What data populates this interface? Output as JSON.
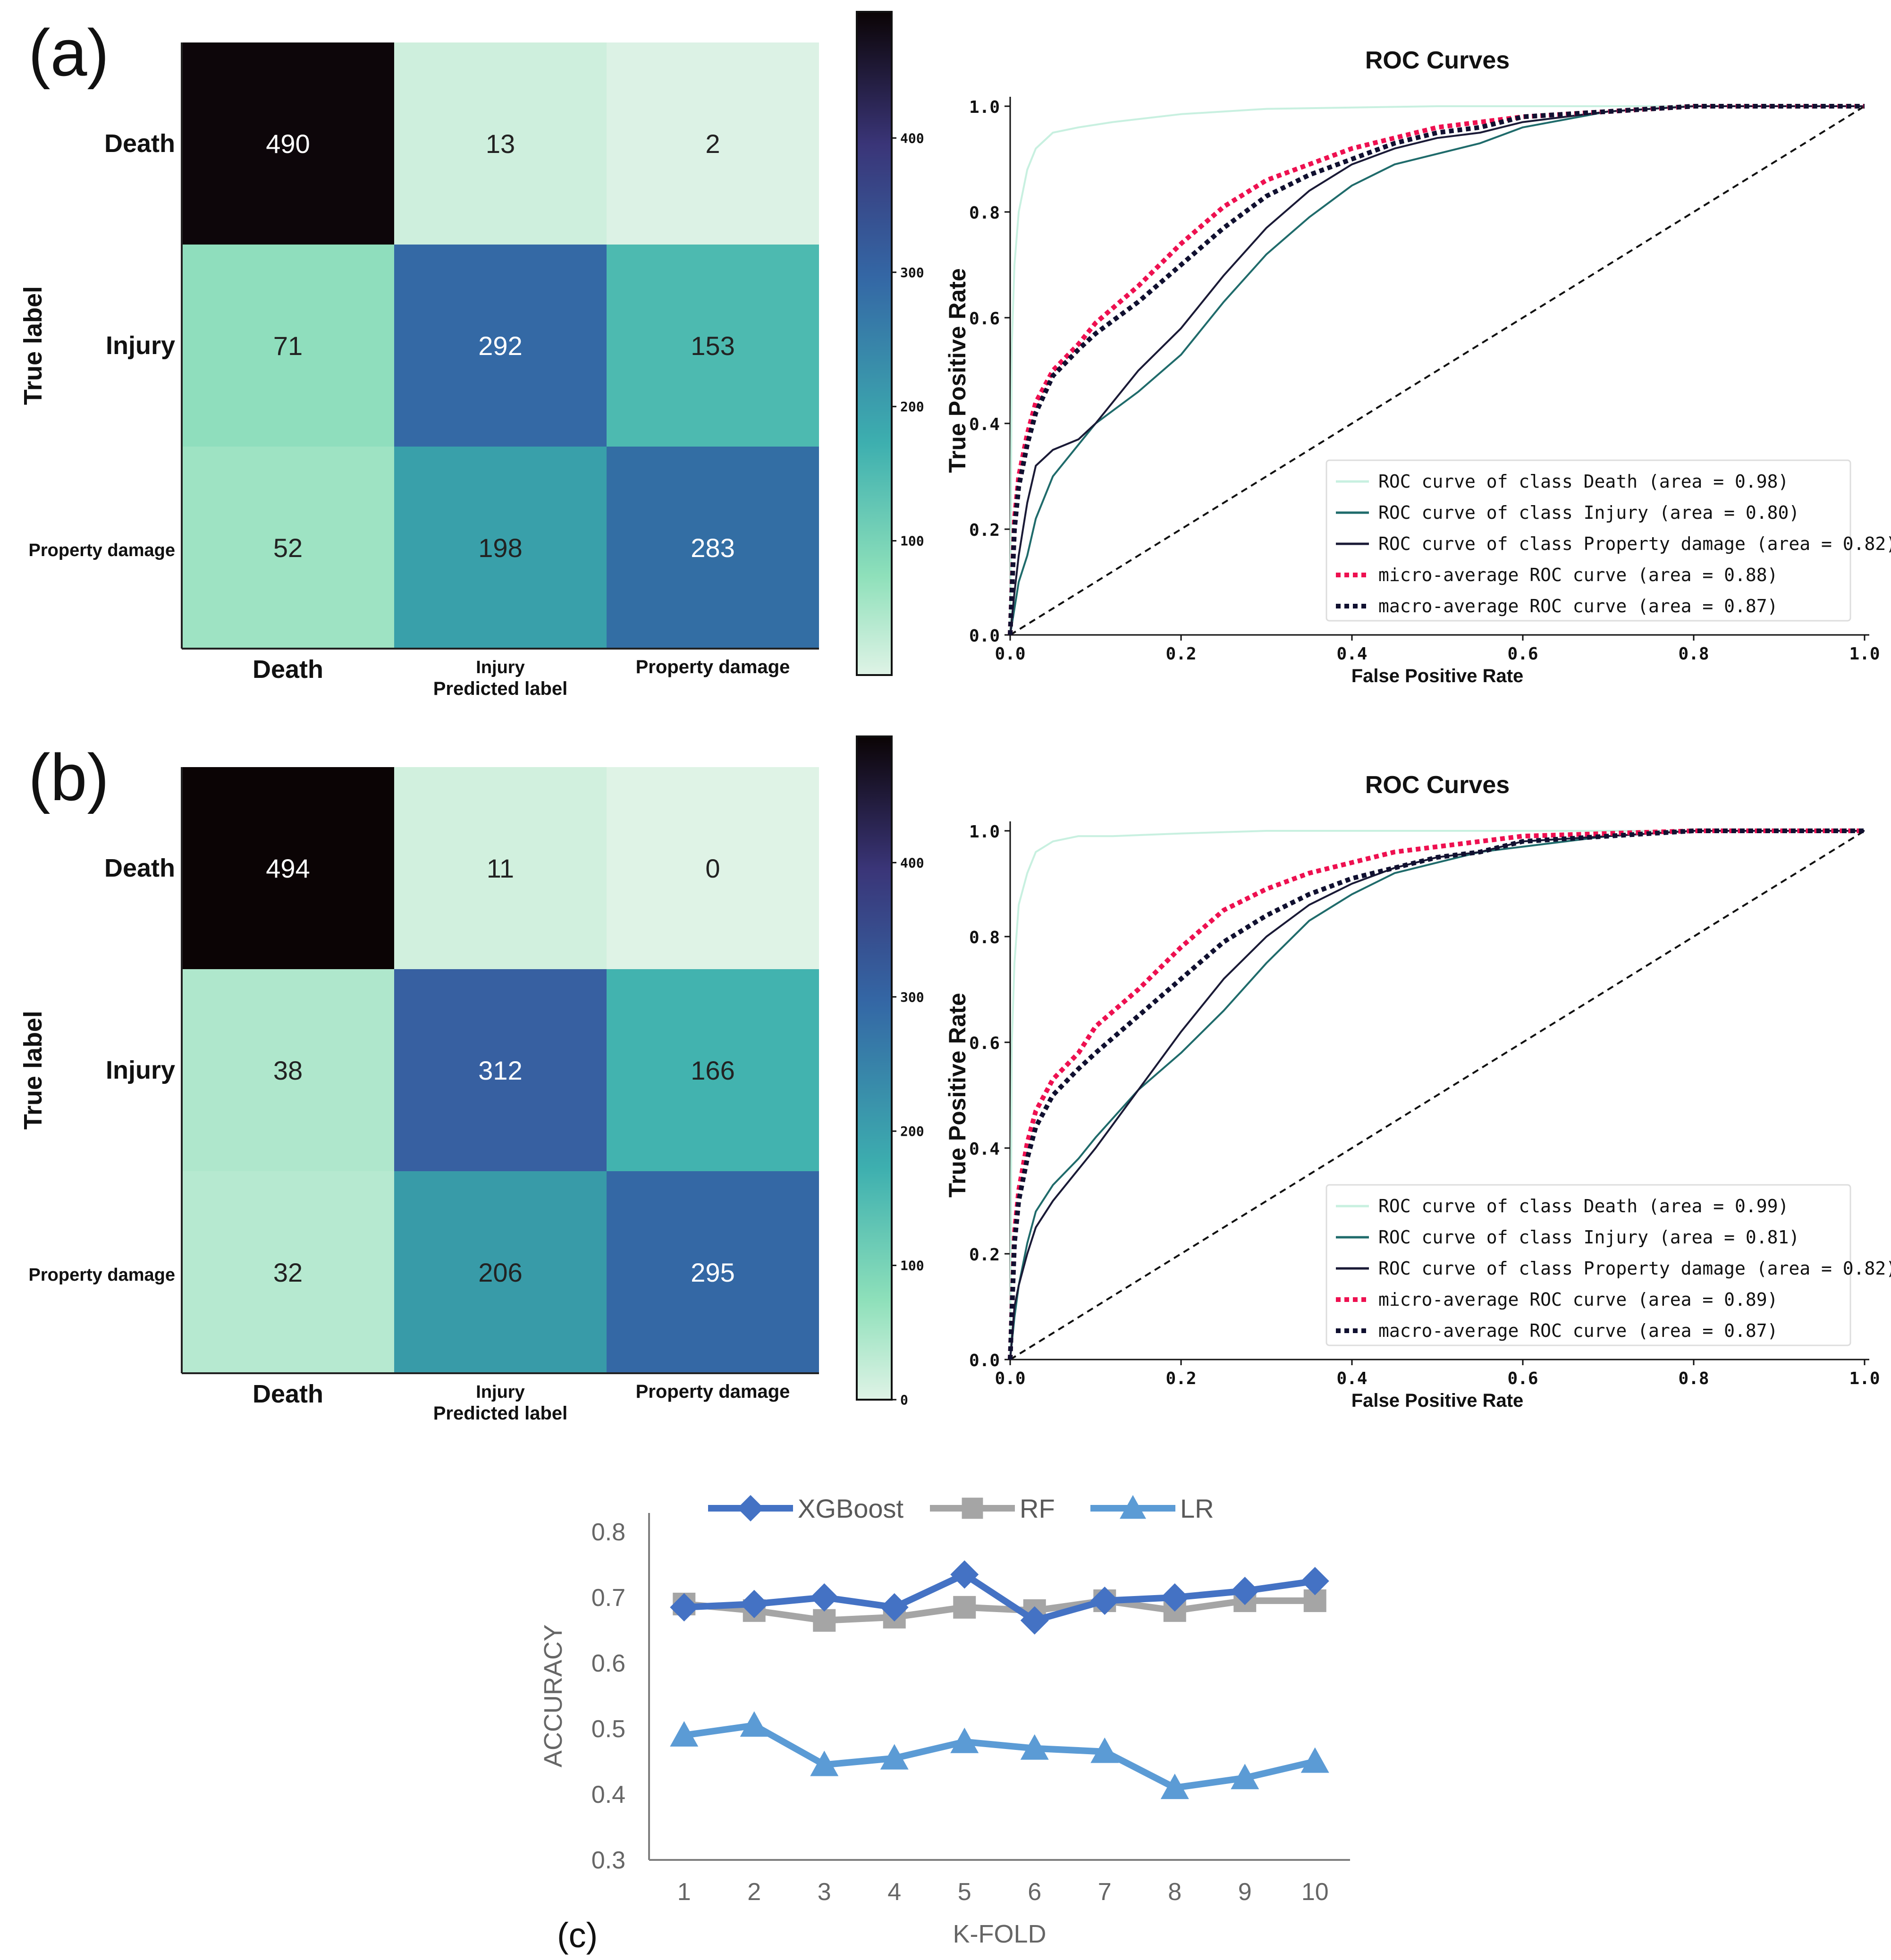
{
  "panels": [
    {
      "panel_label": "(a)",
      "confusion_matrix": {
        "rows_label": "True label",
        "cols_label": "Predicted label",
        "row_labels": [
          "Death",
          "Injury",
          "Property damage"
        ],
        "col_labels": [
          "Death",
          "Injury",
          "Property damage"
        ],
        "matrix": [
          [
            490,
            13,
            2
          ],
          [
            71,
            292,
            153
          ],
          [
            52,
            198,
            283
          ]
        ],
        "colorbar_ticks": [
          "100",
          "200",
          "300",
          "400"
        ],
        "colorbar_tick_values": [
          100,
          200,
          300,
          400
        ],
        "color_range": [
          0,
          494
        ],
        "colormap": "mako_r"
      },
      "roc": {
        "title": "ROC Curves",
        "xlabel": "False Positive Rate",
        "ylabel": "True Positive Rate",
        "xticks": [
          "0.0",
          "0.2",
          "0.4",
          "0.6",
          "0.8",
          "1.0"
        ],
        "yticks": [
          "0.0",
          "0.2",
          "0.4",
          "0.6",
          "0.8",
          "1.0"
        ],
        "legend_position": "lower-right",
        "series": [
          {
            "label": "ROC curve of class Death (area = 0.98)",
            "color": "#c8f0e0",
            "style": "solid",
            "fpr": [
              0,
              0.002,
              0.005,
              0.01,
              0.02,
              0.03,
              0.05,
              0.08,
              0.12,
              0.2,
              0.3,
              0.5,
              0.7,
              1.0
            ],
            "tpr": [
              0,
              0.55,
              0.7,
              0.8,
              0.88,
              0.92,
              0.95,
              0.96,
              0.97,
              0.985,
              0.995,
              1.0,
              1.0,
              1.0
            ]
          },
          {
            "label": "ROC curve of class Injury (area = 0.80)",
            "color": "#1f6b6b",
            "style": "solid",
            "fpr": [
              0,
              0.005,
              0.01,
              0.02,
              0.03,
              0.05,
              0.08,
              0.1,
              0.15,
              0.2,
              0.25,
              0.3,
              0.35,
              0.4,
              0.45,
              0.5,
              0.55,
              0.6,
              0.7,
              0.8,
              1.0
            ],
            "tpr": [
              0,
              0.05,
              0.1,
              0.15,
              0.22,
              0.3,
              0.36,
              0.4,
              0.46,
              0.53,
              0.63,
              0.72,
              0.79,
              0.85,
              0.89,
              0.91,
              0.93,
              0.96,
              0.99,
              1.0,
              1.0
            ]
          },
          {
            "label": "ROC curve of class Property damage (area = 0.82)",
            "color": "#1a1a36",
            "style": "solid",
            "fpr": [
              0,
              0.005,
              0.01,
              0.02,
              0.03,
              0.05,
              0.08,
              0.1,
              0.15,
              0.2,
              0.25,
              0.3,
              0.35,
              0.4,
              0.45,
              0.5,
              0.55,
              0.6,
              0.7,
              0.8,
              1.0
            ],
            "tpr": [
              0,
              0.08,
              0.15,
              0.25,
              0.32,
              0.35,
              0.37,
              0.4,
              0.5,
              0.58,
              0.68,
              0.77,
              0.84,
              0.89,
              0.92,
              0.94,
              0.95,
              0.97,
              0.99,
              1.0,
              1.0
            ]
          },
          {
            "label": "micro-average ROC curve (area = 0.88)",
            "color": "#ee1050",
            "style": "dotted",
            "fpr": [
              0,
              0.005,
              0.01,
              0.02,
              0.03,
              0.05,
              0.08,
              0.1,
              0.15,
              0.2,
              0.25,
              0.3,
              0.35,
              0.4,
              0.45,
              0.5,
              0.55,
              0.6,
              0.7,
              0.8,
              1.0
            ],
            "tpr": [
              0,
              0.22,
              0.3,
              0.38,
              0.44,
              0.5,
              0.55,
              0.59,
              0.66,
              0.74,
              0.81,
              0.86,
              0.89,
              0.92,
              0.94,
              0.96,
              0.97,
              0.98,
              0.99,
              1.0,
              1.0
            ]
          },
          {
            "label": "macro-average ROC curve (area = 0.87)",
            "color": "#101030",
            "style": "dotted",
            "fpr": [
              0,
              0.005,
              0.01,
              0.02,
              0.03,
              0.05,
              0.08,
              0.1,
              0.15,
              0.2,
              0.25,
              0.3,
              0.35,
              0.4,
              0.45,
              0.5,
              0.55,
              0.6,
              0.7,
              0.8,
              1.0
            ],
            "tpr": [
              0,
              0.2,
              0.28,
              0.36,
              0.42,
              0.49,
              0.54,
              0.57,
              0.63,
              0.7,
              0.77,
              0.83,
              0.87,
              0.9,
              0.93,
              0.95,
              0.96,
              0.98,
              0.99,
              1.0,
              1.0
            ]
          }
        ]
      }
    },
    {
      "panel_label": "(b)",
      "confusion_matrix": {
        "rows_label": "True label",
        "cols_label": "Predicted label",
        "row_labels": [
          "Death",
          "Injury",
          "Property damage"
        ],
        "col_labels": [
          "Death",
          "Injury",
          "Property damage"
        ],
        "matrix": [
          [
            494,
            11,
            0
          ],
          [
            38,
            312,
            166
          ],
          [
            32,
            206,
            295
          ]
        ],
        "colorbar_ticks": [
          "0",
          "100",
          "200",
          "300",
          "400"
        ],
        "colorbar_tick_values": [
          0,
          100,
          200,
          300,
          400
        ],
        "color_range": [
          0,
          494
        ],
        "colormap": "mako_r"
      },
      "roc": {
        "title": "ROC Curves",
        "xlabel": "False Positive Rate",
        "ylabel": "True Positive Rate",
        "xticks": [
          "0.0",
          "0.2",
          "0.4",
          "0.6",
          "0.8",
          "1.0"
        ],
        "yticks": [
          "0.0",
          "0.2",
          "0.4",
          "0.6",
          "0.8",
          "1.0"
        ],
        "legend_position": "lower-right",
        "series": [
          {
            "label": "ROC curve of class Death (area = 0.99)",
            "color": "#c8f0e0",
            "style": "solid",
            "fpr": [
              0,
              0.002,
              0.005,
              0.01,
              0.02,
              0.03,
              0.05,
              0.08,
              0.12,
              0.2,
              0.3,
              0.5,
              0.7,
              1.0
            ],
            "tpr": [
              0,
              0.6,
              0.75,
              0.86,
              0.92,
              0.96,
              0.98,
              0.99,
              0.99,
              0.995,
              1.0,
              1.0,
              1.0,
              1.0
            ]
          },
          {
            "label": "ROC curve of class Injury (area = 0.81)",
            "color": "#1f6b6b",
            "style": "solid",
            "fpr": [
              0,
              0.005,
              0.01,
              0.02,
              0.03,
              0.05,
              0.08,
              0.1,
              0.15,
              0.2,
              0.25,
              0.3,
              0.35,
              0.4,
              0.45,
              0.5,
              0.55,
              0.6,
              0.7,
              0.8,
              1.0
            ],
            "tpr": [
              0,
              0.08,
              0.14,
              0.22,
              0.28,
              0.33,
              0.38,
              0.42,
              0.51,
              0.58,
              0.66,
              0.75,
              0.83,
              0.88,
              0.92,
              0.94,
              0.96,
              0.97,
              0.99,
              1.0,
              1.0
            ]
          },
          {
            "label": "ROC curve of class Property damage (area = 0.82)",
            "color": "#1a1a36",
            "style": "solid",
            "fpr": [
              0,
              0.005,
              0.01,
              0.02,
              0.03,
              0.05,
              0.08,
              0.1,
              0.15,
              0.2,
              0.25,
              0.3,
              0.35,
              0.4,
              0.45,
              0.5,
              0.55,
              0.6,
              0.7,
              0.8,
              1.0
            ],
            "tpr": [
              0,
              0.1,
              0.14,
              0.2,
              0.25,
              0.3,
              0.36,
              0.4,
              0.51,
              0.62,
              0.72,
              0.8,
              0.86,
              0.9,
              0.93,
              0.95,
              0.96,
              0.98,
              0.99,
              1.0,
              1.0
            ]
          },
          {
            "label": "micro-average ROC curve (area = 0.89)",
            "color": "#ee1050",
            "style": "dotted",
            "fpr": [
              0,
              0.005,
              0.01,
              0.02,
              0.03,
              0.05,
              0.08,
              0.1,
              0.15,
              0.2,
              0.25,
              0.3,
              0.35,
              0.4,
              0.45,
              0.5,
              0.55,
              0.6,
              0.7,
              0.8,
              1.0
            ],
            "tpr": [
              0,
              0.24,
              0.32,
              0.41,
              0.47,
              0.53,
              0.58,
              0.63,
              0.7,
              0.78,
              0.85,
              0.89,
              0.92,
              0.94,
              0.96,
              0.97,
              0.98,
              0.99,
              0.995,
              1.0,
              1.0
            ]
          },
          {
            "label": "macro-average ROC curve (area = 0.87)",
            "color": "#101030",
            "style": "dotted",
            "fpr": [
              0,
              0.005,
              0.01,
              0.02,
              0.03,
              0.05,
              0.08,
              0.1,
              0.15,
              0.2,
              0.25,
              0.3,
              0.35,
              0.4,
              0.45,
              0.5,
              0.55,
              0.6,
              0.7,
              0.8,
              1.0
            ],
            "tpr": [
              0,
              0.22,
              0.3,
              0.38,
              0.44,
              0.5,
              0.55,
              0.58,
              0.65,
              0.72,
              0.79,
              0.84,
              0.88,
              0.91,
              0.93,
              0.95,
              0.96,
              0.98,
              0.99,
              1.0,
              1.0
            ]
          }
        ]
      }
    }
  ],
  "panel_c": {
    "label": "(c)",
    "xlabel": "K-FOLD",
    "ylabel": "ACCURACY",
    "legend_position": "top"
  },
  "chart_data": [
    {
      "type": "heatmap",
      "panel": "(a)",
      "ylabel": "True label",
      "xlabel": "Predicted label",
      "rows": [
        "Death",
        "Injury",
        "Property damage"
      ],
      "columns": [
        "Death",
        "Injury",
        "Property damage"
      ],
      "values": [
        [
          490,
          13,
          2
        ],
        [
          71,
          292,
          153
        ],
        [
          52,
          198,
          283
        ]
      ],
      "colorbar_ticks": [
        100,
        200,
        300,
        400
      ]
    },
    {
      "type": "line",
      "panel": "(a)",
      "title": "ROC Curves",
      "xlabel": "False Positive Rate",
      "ylabel": "True Positive Rate",
      "xlim": [
        0,
        1
      ],
      "ylim": [
        0,
        1
      ],
      "legend": "lower-right",
      "diagonal_reference": true,
      "series": [
        {
          "name": "ROC curve of class Death (area = 0.98)"
        },
        {
          "name": "ROC curve of class Injury (area = 0.80)"
        },
        {
          "name": "ROC curve of class Property damage (area = 0.82)"
        },
        {
          "name": "micro-average ROC curve (area = 0.88)"
        },
        {
          "name": "macro-average ROC curve (area = 0.87)"
        }
      ]
    },
    {
      "type": "heatmap",
      "panel": "(b)",
      "ylabel": "True label",
      "xlabel": "Predicted label",
      "rows": [
        "Death",
        "Injury",
        "Property damage"
      ],
      "columns": [
        "Death",
        "Injury",
        "Property damage"
      ],
      "values": [
        [
          494,
          11,
          0
        ],
        [
          38,
          312,
          166
        ],
        [
          32,
          206,
          295
        ]
      ],
      "colorbar_ticks": [
        0,
        100,
        200,
        300,
        400
      ]
    },
    {
      "type": "line",
      "panel": "(b)",
      "title": "ROC Curves",
      "xlabel": "False Positive Rate",
      "ylabel": "True Positive Rate",
      "xlim": [
        0,
        1
      ],
      "ylim": [
        0,
        1
      ],
      "legend": "lower-right",
      "diagonal_reference": true,
      "series": [
        {
          "name": "ROC curve of class Death (area = 0.99)"
        },
        {
          "name": "ROC curve of class Injury (area = 0.81)"
        },
        {
          "name": "ROC curve of class Property damage (area = 0.82)"
        },
        {
          "name": "micro-average ROC curve (area = 0.89)"
        },
        {
          "name": "macro-average ROC curve (area = 0.87)"
        }
      ]
    },
    {
      "type": "line",
      "panel": "(c)",
      "xlabel": "K-FOLD",
      "ylabel": "ACCURACY",
      "categories": [
        "1",
        "2",
        "3",
        "4",
        "5",
        "6",
        "7",
        "8",
        "9",
        "10"
      ],
      "ylim": [
        0.3,
        0.8
      ],
      "yticks": [
        "0.3",
        "0.4",
        "0.5",
        "0.6",
        "0.7",
        "0.8"
      ],
      "grid": false,
      "legend": "top",
      "series": [
        {
          "name": "XGBoost",
          "marker": "diamond",
          "color": "#4472c4",
          "values": [
            0.685,
            0.69,
            0.7,
            0.685,
            0.735,
            0.665,
            0.695,
            0.7,
            0.71,
            0.725
          ]
        },
        {
          "name": "RF",
          "marker": "square",
          "color": "#a5a5a5",
          "values": [
            0.69,
            0.68,
            0.665,
            0.67,
            0.685,
            0.68,
            0.695,
            0.68,
            0.695,
            0.695
          ]
        },
        {
          "name": "LR",
          "marker": "triangle",
          "color": "#5b9bd5",
          "values": [
            0.49,
            0.505,
            0.445,
            0.455,
            0.48,
            0.47,
            0.465,
            0.41,
            0.425,
            0.45
          ]
        }
      ]
    }
  ]
}
